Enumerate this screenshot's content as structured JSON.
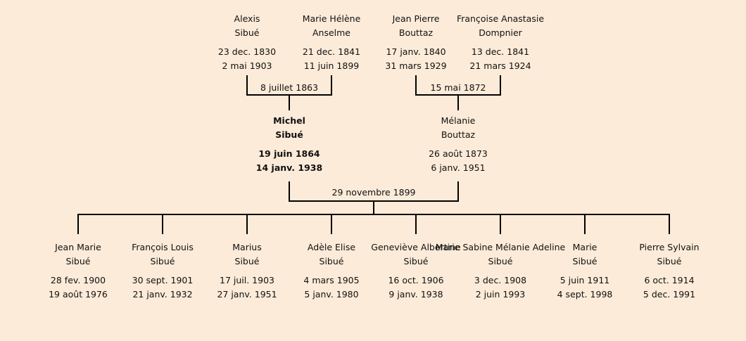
{
  "grandparents": [
    {
      "first": "Alexis",
      "last": "Sibué",
      "birth": "23 dec. 1830",
      "death": "2 mai 1903"
    },
    {
      "first": "Marie Hélène",
      "last": "Anselme",
      "birth": "21 dec. 1841",
      "death": "11 juin 1899"
    },
    {
      "first": "Jean Pierre",
      "last": "Bouttaz",
      "birth": "17 janv. 1840",
      "death": "31 mars 1929"
    },
    {
      "first": "Françoise Anastasie",
      "last": "Dompnier",
      "birth": "13 dec. 1841",
      "death": "21 mars 1924"
    }
  ],
  "marriages": {
    "paternal": "8 juillet 1863",
    "maternal": "15 mai 1872",
    "parents": "29 novembre 1899"
  },
  "parents": [
    {
      "first": "Michel",
      "last": "Sibué",
      "birth": "19 juin 1864",
      "death": "14 janv. 1938",
      "highlighted": true
    },
    {
      "first": "Mélanie",
      "last": "Bouttaz",
      "birth": "26 août 1873",
      "death": "6 janv. 1951"
    }
  ],
  "children": [
    {
      "first": "Jean Marie",
      "last": "Sibué",
      "birth": "28 fev. 1900",
      "death": "19 août 1976"
    },
    {
      "first": "François Louis",
      "last": "Sibué",
      "birth": "30 sept. 1901",
      "death": "21 janv. 1932"
    },
    {
      "first": "Marius",
      "last": "Sibué",
      "birth": "17 juil. 1903",
      "death": "27 janv. 1951"
    },
    {
      "first": "Adèle Elise",
      "last": "Sibué",
      "birth": "4 mars 1905",
      "death": "5 janv. 1980"
    },
    {
      "first": "Geneviève Albertine",
      "last": "Sibué",
      "birth": "16 oct. 1906",
      "death": "9 janv. 1938"
    },
    {
      "first": "Marie Sabine Mélanie Adeline",
      "last": "Sibué",
      "birth": "3 dec. 1908",
      "death": "2 juin 1993"
    },
    {
      "first": "Marie",
      "last": "Sibué",
      "birth": "5 juin 1911",
      "death": "4 sept. 1998"
    },
    {
      "first": "Pierre Sylvain",
      "last": "Sibué",
      "birth": "6 oct. 1914",
      "death": "5 dec. 1991"
    }
  ]
}
